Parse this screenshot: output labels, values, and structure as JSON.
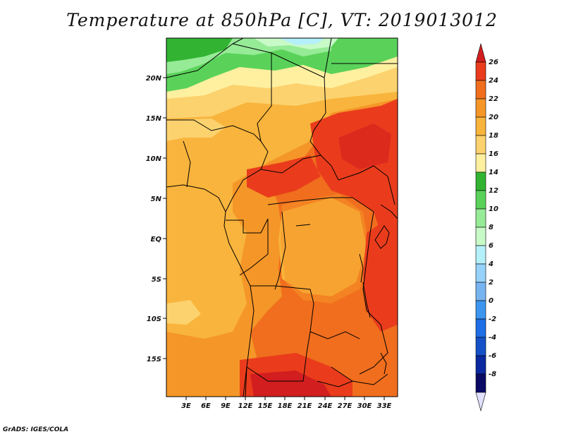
{
  "title": "Temperature at 850hPa [C], VT: 2019013012",
  "footer": "GrADS: IGES/COLA",
  "map": {
    "lat_labels": [
      "20N",
      "15N",
      "10N",
      "5N",
      "EQ",
      "5S",
      "10S",
      "15S"
    ],
    "lon_labels": [
      "3E",
      "6E",
      "9E",
      "12E",
      "15E",
      "18E",
      "21E",
      "24E",
      "27E",
      "30E",
      "33E"
    ]
  },
  "colorbar": {
    "levels": [
      "26",
      "24",
      "22",
      "20",
      "18",
      "16",
      "14",
      "12",
      "10",
      "8",
      "6",
      "4",
      "2",
      "0",
      "-2",
      "-4",
      "-6",
      "-8"
    ],
    "colors": [
      "#d21e1e",
      "#ea3c1c",
      "#f06e1e",
      "#f59628",
      "#f8b43c",
      "#fcd26e",
      "#fff0a0",
      "#32b432",
      "#5ad25a",
      "#96eb96",
      "#c8fac8",
      "#b4f0fa",
      "#96d2fa",
      "#78b4f0",
      "#3c96f0",
      "#1e6ee6",
      "#1450c8",
      "#0a28a0",
      "#0a0a64",
      "#e1e1ff"
    ]
  }
}
